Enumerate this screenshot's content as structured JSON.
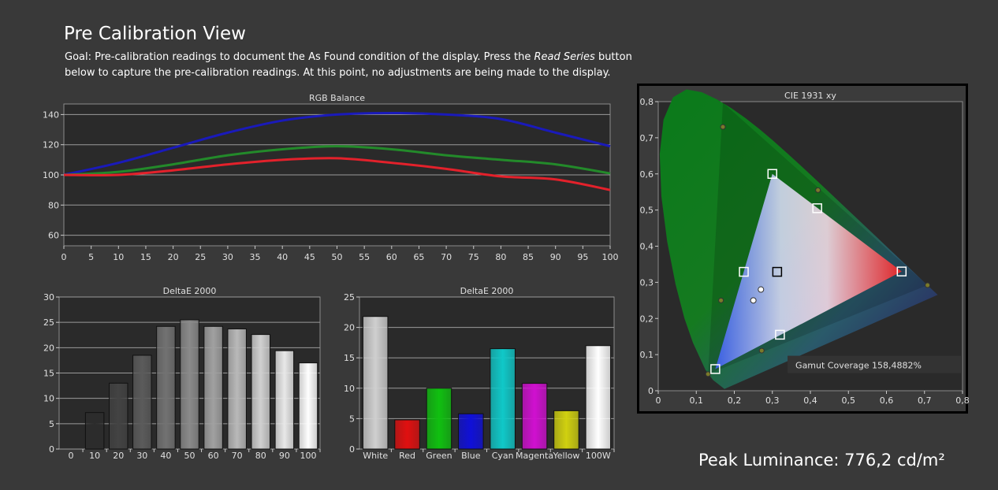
{
  "page": {
    "title": "Pre Calibration View",
    "goal_prefix": "Goal: Pre-calibration readings to document the As Found condition of the display. Press the ",
    "goal_italic": "Read Series",
    "goal_suffix": " button below to capture the pre-calibration readings. At this point, no adjustments are being made to the display.",
    "peak_luminance": "Peak Luminance: 776,2 cd/m²",
    "gamut_coverage": "Gamut Coverage 158,4882%"
  },
  "colors": {
    "background": "#393939",
    "plot_bg": "#2a2a2a",
    "red": "#e3212b",
    "green": "#238a2a",
    "blue": "#1a1aba"
  },
  "chart_data": [
    {
      "type": "line",
      "title": "RGB Balance",
      "x": [
        0,
        10,
        20,
        30,
        40,
        50,
        60,
        70,
        80,
        90,
        100
      ],
      "x_ticks": [
        0,
        5,
        10,
        15,
        20,
        25,
        30,
        35,
        40,
        45,
        50,
        55,
        60,
        65,
        70,
        75,
        80,
        85,
        90,
        95,
        100
      ],
      "y_ticks": [
        60,
        80,
        100,
        120,
        140
      ],
      "ylim": [
        53,
        147
      ],
      "xlim": [
        0,
        100
      ],
      "grid": true,
      "series": [
        {
          "color": "#1a1aba",
          "values": [
            100,
            108,
            118,
            128,
            136,
            140,
            141,
            140,
            137,
            128,
            119
          ]
        },
        {
          "color": "#238a2a",
          "values": [
            100,
            102,
            107,
            113,
            117,
            119,
            117,
            113,
            110,
            107,
            101
          ]
        },
        {
          "color": "#e3212b",
          "values": [
            100,
            100,
            103,
            107,
            110,
            111,
            108,
            104,
            99,
            97,
            90
          ]
        }
      ]
    },
    {
      "type": "bar",
      "title": "DeltaE 2000",
      "categories": [
        "0",
        "10",
        "20",
        "30",
        "40",
        "50",
        "60",
        "70",
        "80",
        "90",
        "100"
      ],
      "values": [
        0,
        7.2,
        13.0,
        18.5,
        24.2,
        25.5,
        24.2,
        23.7,
        22.6,
        19.4,
        17.0
      ],
      "y_ticks": [
        0,
        5,
        10,
        15,
        20,
        25,
        30
      ],
      "ylim": [
        0,
        30
      ],
      "grid": true
    },
    {
      "type": "bar",
      "title": "DeltaE 2000",
      "categories": [
        "White",
        "Red",
        "Green",
        "Blue",
        "Cyan",
        "Magenta",
        "Yellow",
        "100W"
      ],
      "values": [
        21.8,
        4.8,
        10.0,
        5.8,
        16.5,
        10.8,
        6.3,
        17.0
      ],
      "bar_colors": [
        "#cfcfcf",
        "#e01010",
        "#10c010",
        "#1010d8",
        "#10c8c8",
        "#d010d0",
        "#d0d010",
        "#ffffff"
      ],
      "y_ticks": [
        0,
        5,
        10,
        15,
        20,
        25
      ],
      "ylim": [
        0,
        25
      ],
      "grid": true
    },
    {
      "type": "scatter",
      "title": "CIE 1931 xy",
      "x_ticks": [
        "0",
        "0,1",
        "0,2",
        "0,3",
        "0,4",
        "0,5",
        "0,6",
        "0,7",
        "0,8"
      ],
      "y_ticks": [
        "0",
        "0,1",
        "0,2",
        "0,3",
        "0,4",
        "0,5",
        "0,6",
        "0,7",
        "0,8"
      ],
      "xlim": [
        0,
        0.8
      ],
      "ylim": [
        0,
        0.8
      ],
      "target_gamut": [
        [
          0.708,
          0.292
        ],
        [
          0.17,
          0.797
        ],
        [
          0.131,
          0.046
        ]
      ],
      "measured_gamut": [
        [
          0.64,
          0.33
        ],
        [
          0.3,
          0.6
        ],
        [
          0.15,
          0.06
        ]
      ],
      "square_markers": [
        [
          0.64,
          0.33
        ],
        [
          0.3,
          0.6
        ],
        [
          0.15,
          0.06
        ],
        [
          0.225,
          0.329
        ],
        [
          0.418,
          0.505
        ],
        [
          0.32,
          0.155
        ],
        [
          0.3127,
          0.329
        ]
      ],
      "target_points": [
        [
          0.708,
          0.292
        ],
        [
          0.17,
          0.73
        ],
        [
          0.131,
          0.046
        ],
        [
          0.165,
          0.25
        ],
        [
          0.42,
          0.555
        ],
        [
          0.272,
          0.111
        ]
      ],
      "white_points": [
        [
          0.27,
          0.28
        ],
        [
          0.25,
          0.25
        ]
      ]
    }
  ]
}
